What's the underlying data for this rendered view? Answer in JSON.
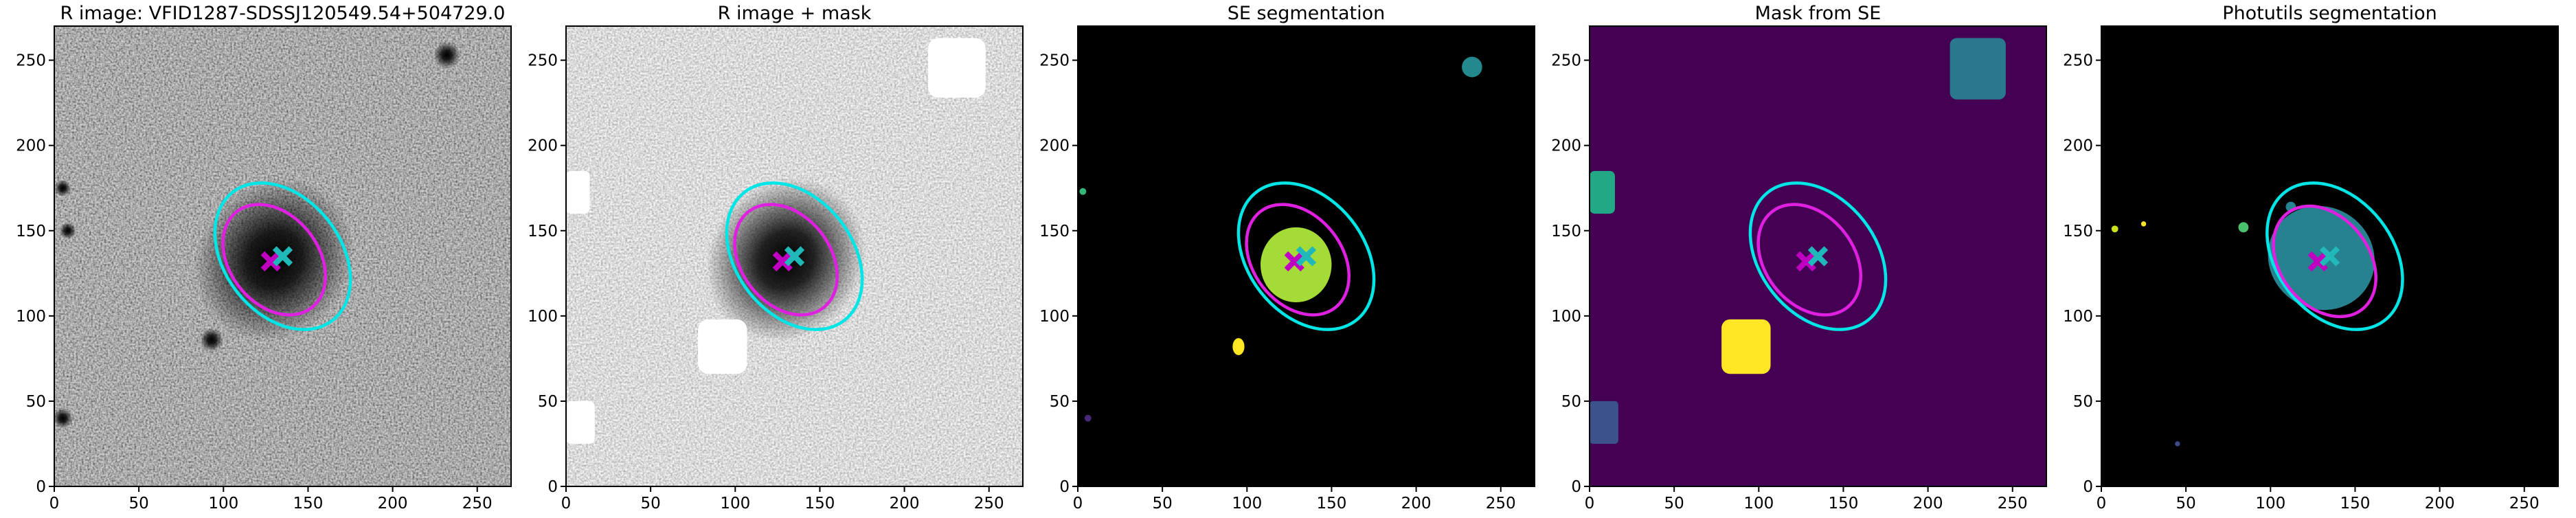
{
  "chart_data": [
    {
      "type": "image",
      "title": "R image: VFID1287-SDSSJ120549.54+504729.0",
      "xlim": [
        0,
        270
      ],
      "ylim": [
        0,
        270
      ],
      "xticks": [
        0,
        50,
        100,
        150,
        200,
        250
      ],
      "yticks": [
        0,
        50,
        100,
        150,
        200,
        250
      ],
      "ellipses": [
        {
          "color": "#00e5e5",
          "cx": 135,
          "cy": 135,
          "rx": 48,
          "ry": 34,
          "angle": -52
        },
        {
          "color": "#e020e0",
          "cx": 130,
          "cy": 133,
          "rx": 36,
          "ry": 26,
          "angle": -52
        }
      ],
      "markers": [
        {
          "color": "#c000c0",
          "x": 128,
          "y": 132
        },
        {
          "color": "#20b8b8",
          "x": 135,
          "y": 135
        }
      ]
    },
    {
      "type": "image",
      "title": "R image + mask",
      "xlim": [
        0,
        270
      ],
      "ylim": [
        0,
        270
      ],
      "xticks": [
        0,
        50,
        100,
        150,
        200,
        250
      ],
      "yticks": [
        0,
        50,
        100,
        150,
        200,
        250
      ],
      "ellipses": [
        {
          "color": "#00e5e5",
          "cx": 135,
          "cy": 135,
          "rx": 48,
          "ry": 34,
          "angle": -52
        },
        {
          "color": "#e020e0",
          "cx": 130,
          "cy": 133,
          "rx": 36,
          "ry": 26,
          "angle": -52
        }
      ],
      "markers": [
        {
          "color": "#c000c0",
          "x": 128,
          "y": 132
        },
        {
          "color": "#20b8b8",
          "x": 135,
          "y": 135
        }
      ]
    },
    {
      "type": "image",
      "title": "SE segmentation",
      "xlim": [
        0,
        270
      ],
      "ylim": [
        0,
        270
      ],
      "xticks": [
        0,
        50,
        100,
        150,
        200,
        250
      ],
      "yticks": [
        0,
        50,
        100,
        150,
        200,
        250
      ],
      "ellipses": [
        {
          "color": "#00e5e5",
          "cx": 135,
          "cy": 135,
          "rx": 48,
          "ry": 34,
          "angle": -52
        },
        {
          "color": "#e020e0",
          "cx": 130,
          "cy": 133,
          "rx": 36,
          "ry": 26,
          "angle": -52
        }
      ],
      "markers": [
        {
          "color": "#c000c0",
          "x": 128,
          "y": 132
        },
        {
          "color": "#20b8b8",
          "x": 135,
          "y": 135
        }
      ]
    },
    {
      "type": "image",
      "title": "Mask from SE",
      "xlim": [
        0,
        270
      ],
      "ylim": [
        0,
        270
      ],
      "xticks": [
        0,
        50,
        100,
        150,
        200,
        250
      ],
      "yticks": [
        0,
        50,
        100,
        150,
        200,
        250
      ],
      "ellipses": [
        {
          "color": "#00e5e5",
          "cx": 135,
          "cy": 135,
          "rx": 48,
          "ry": 34,
          "angle": -52
        },
        {
          "color": "#e020e0",
          "cx": 130,
          "cy": 133,
          "rx": 36,
          "ry": 26,
          "angle": -52
        }
      ],
      "markers": [
        {
          "color": "#c000c0",
          "x": 128,
          "y": 132
        },
        {
          "color": "#20b8b8",
          "x": 135,
          "y": 135
        }
      ]
    },
    {
      "type": "image",
      "title": "Photutils segmentation",
      "xlim": [
        0,
        270
      ],
      "ylim": [
        0,
        270
      ],
      "xticks": [
        0,
        50,
        100,
        150,
        200,
        250
      ],
      "yticks": [
        0,
        50,
        100,
        150,
        200,
        250
      ],
      "ellipses": [
        {
          "color": "#00e5e5",
          "cx": 138,
          "cy": 135,
          "rx": 48,
          "ry": 34,
          "angle": -52
        },
        {
          "color": "#e020e0",
          "cx": 132,
          "cy": 132,
          "rx": 36,
          "ry": 26,
          "angle": -52
        }
      ],
      "markers": [
        {
          "color": "#c000c0",
          "x": 128,
          "y": 132
        },
        {
          "color": "#20b8b8",
          "x": 135,
          "y": 135
        }
      ]
    }
  ]
}
